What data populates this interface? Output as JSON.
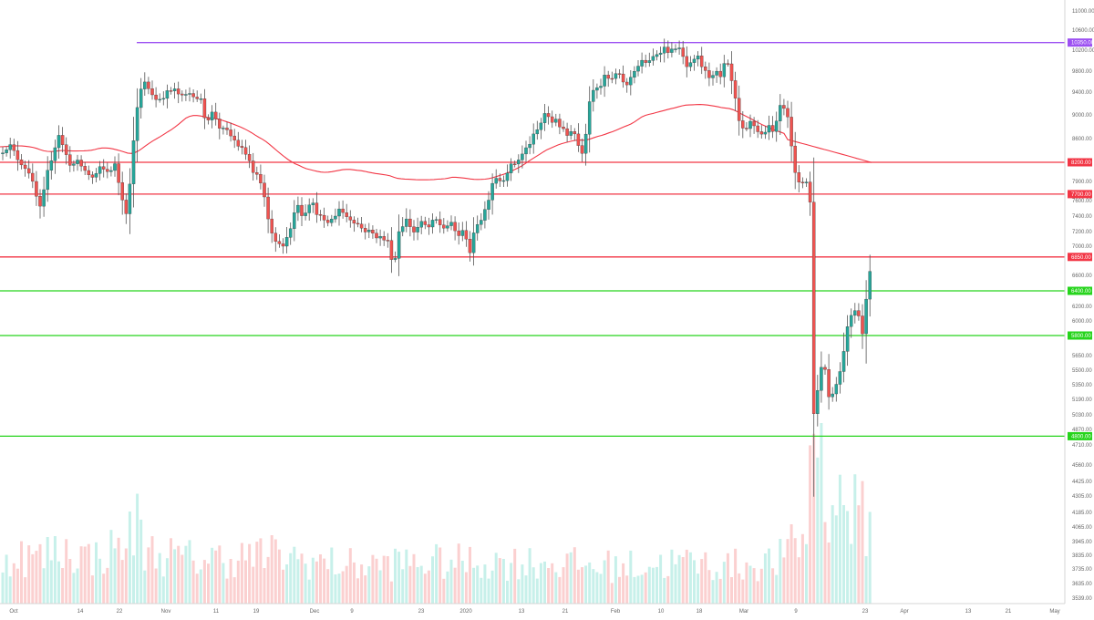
{
  "chart_data": {
    "type": "candlestick",
    "price_axis": {
      "scale": "log",
      "ticks": [
        "11000.00",
        "10600.00",
        "10200.00",
        "9800.00",
        "9400.00",
        "9000.00",
        "8600.00",
        "8200.00",
        "7900.00",
        "7600.00",
        "7400.00",
        "7200.00",
        "7000.00",
        "6600.00",
        "6400.00",
        "6200.00",
        "6000.00",
        "5800.00",
        "5650.00",
        "5500.00",
        "5350.00",
        "5190.00",
        "5030.00",
        "4870.00",
        "4710.00",
        "4560.00",
        "4425.00",
        "4305.00",
        "4185.00",
        "4065.00",
        "3945.00",
        "3835.00",
        "3735.00",
        "3635.00",
        "3539.00"
      ]
    },
    "time_axis": {
      "labels": [
        "Oct",
        "14",
        "22",
        "Nov",
        "11",
        "19",
        "Dec",
        "9",
        "23",
        "2020",
        "13",
        "21",
        "Feb",
        "10",
        "18",
        "Mar",
        "9",
        "23",
        "Apr",
        "13",
        "21",
        "May"
      ]
    },
    "horizontal_levels": [
      {
        "label": "10350.00",
        "value": 10350,
        "color": "#9c50f2"
      },
      {
        "label": "8200.00",
        "value": 8200,
        "color": "#f23645"
      },
      {
        "label": "7700.00",
        "value": 7700,
        "color": "#f23645"
      },
      {
        "label": "6850.00",
        "value": 6850,
        "color": "#f23645"
      },
      {
        "label": "6400.00",
        "value": 6400,
        "color": "#26d41c"
      },
      {
        "label": "5800.00",
        "value": 5800,
        "color": "#26d41c"
      },
      {
        "label": "4800.00",
        "value": 4800,
        "color": "#26d41c"
      }
    ],
    "moving_average_color": "#f23645",
    "colors": {
      "up": "#26a69a",
      "down": "#ef5350",
      "up_volume": "#c7f0ea",
      "down_volume": "#fbd0d0"
    },
    "anchors": [
      [
        0,
        8350
      ],
      [
        10,
        8500
      ],
      [
        20,
        8250
      ],
      [
        32,
        8050
      ],
      [
        40,
        7650
      ],
      [
        45,
        7450
      ],
      [
        50,
        7900
      ],
      [
        55,
        8200
      ],
      [
        60,
        8450
      ],
      [
        65,
        8700
      ],
      [
        70,
        8400
      ],
      [
        78,
        8150
      ],
      [
        86,
        8200
      ],
      [
        94,
        8050
      ],
      [
        102,
        7950
      ],
      [
        110,
        8100
      ],
      [
        118,
        8050
      ],
      [
        126,
        8150
      ],
      [
        134,
        7650
      ],
      [
        140,
        7400
      ],
      [
        147,
        8700
      ],
      [
        152,
        9250
      ],
      [
        157,
        9600
      ],
      [
        164,
        9450
      ],
      [
        172,
        9250
      ],
      [
        180,
        9350
      ],
      [
        190,
        9450
      ],
      [
        200,
        9300
      ],
      [
        210,
        9400
      ],
      [
        220,
        9250
      ],
      [
        226,
        8900
      ],
      [
        234,
        9050
      ],
      [
        242,
        8750
      ],
      [
        250,
        8700
      ],
      [
        258,
        8550
      ],
      [
        266,
        8400
      ],
      [
        272,
        8300
      ],
      [
        278,
        8000
      ],
      [
        284,
        7950
      ],
      [
        290,
        7650
      ],
      [
        296,
        7200
      ],
      [
        302,
        7050
      ],
      [
        308,
        7000
      ],
      [
        314,
        7100
      ],
      [
        320,
        7300
      ],
      [
        326,
        7600
      ],
      [
        332,
        7400
      ],
      [
        340,
        7600
      ],
      [
        348,
        7450
      ],
      [
        356,
        7300
      ],
      [
        364,
        7350
      ],
      [
        372,
        7500
      ],
      [
        380,
        7400
      ],
      [
        388,
        7350
      ],
      [
        396,
        7250
      ],
      [
        404,
        7200
      ],
      [
        412,
        7150
      ],
      [
        420,
        7100
      ],
      [
        426,
        7050
      ],
      [
        432,
        6700
      ],
      [
        438,
        7250
      ],
      [
        446,
        7350
      ],
      [
        454,
        7200
      ],
      [
        462,
        7300
      ],
      [
        470,
        7250
      ],
      [
        478,
        7350
      ],
      [
        486,
        7250
      ],
      [
        494,
        7300
      ],
      [
        502,
        7150
      ],
      [
        510,
        7200
      ],
      [
        516,
        6900
      ],
      [
        522,
        7300
      ],
      [
        530,
        7400
      ],
      [
        536,
        7650
      ],
      [
        542,
        8000
      ],
      [
        550,
        7900
      ],
      [
        558,
        8100
      ],
      [
        566,
        8200
      ],
      [
        574,
        8350
      ],
      [
        580,
        8500
      ],
      [
        586,
        8650
      ],
      [
        592,
        8800
      ],
      [
        598,
        9050
      ],
      [
        604,
        8850
      ],
      [
        610,
        8950
      ],
      [
        616,
        8750
      ],
      [
        622,
        8650
      ],
      [
        628,
        8800
      ],
      [
        634,
        8500
      ],
      [
        640,
        8350
      ],
      [
        646,
        9200
      ],
      [
        652,
        9550
      ],
      [
        658,
        9500
      ],
      [
        664,
        9700
      ],
      [
        670,
        9600
      ],
      [
        676,
        9750
      ],
      [
        682,
        9650
      ],
      [
        688,
        9500
      ],
      [
        694,
        9800
      ],
      [
        700,
        9900
      ],
      [
        706,
        10000
      ],
      [
        712,
        9950
      ],
      [
        718,
        10100
      ],
      [
        724,
        10200
      ],
      [
        730,
        10250
      ],
      [
        736,
        10150
      ],
      [
        742,
        10300
      ],
      [
        748,
        10100
      ],
      [
        754,
        9850
      ],
      [
        760,
        9950
      ],
      [
        766,
        10050
      ],
      [
        772,
        9800
      ],
      [
        778,
        9700
      ],
      [
        784,
        9800
      ],
      [
        790,
        9650
      ],
      [
        796,
        10000
      ],
      [
        800,
        9800
      ],
      [
        806,
        9300
      ],
      [
        812,
        8750
      ],
      [
        818,
        8700
      ],
      [
        824,
        8900
      ],
      [
        830,
        8750
      ],
      [
        836,
        8650
      ],
      [
        842,
        8800
      ],
      [
        848,
        8700
      ],
      [
        854,
        9100
      ],
      [
        860,
        9150
      ],
      [
        866,
        8950
      ],
      [
        870,
        8100
      ],
      [
        876,
        7850
      ],
      [
        882,
        7900
      ],
      [
        888,
        7950
      ],
      [
        893,
        4850
      ],
      [
        898,
        5450
      ],
      [
        904,
        5600
      ],
      [
        910,
        5150
      ],
      [
        916,
        5350
      ],
      [
        922,
        5500
      ],
      [
        928,
        5850
      ],
      [
        934,
        6100
      ],
      [
        940,
        6200
      ],
      [
        946,
        5850
      ],
      [
        952,
        6500
      ],
      [
        956,
        6750
      ]
    ],
    "volume_anchors": [
      [
        0,
        60
      ],
      [
        20,
        65
      ],
      [
        40,
        60
      ],
      [
        60,
        70
      ],
      [
        80,
        70
      ],
      [
        100,
        60
      ],
      [
        130,
        75
      ],
      [
        140,
        85
      ],
      [
        150,
        110
      ],
      [
        160,
        70
      ],
      [
        200,
        60
      ],
      [
        250,
        60
      ],
      [
        300,
        65
      ],
      [
        350,
        55
      ],
      [
        400,
        50
      ],
      [
        450,
        55
      ],
      [
        500,
        55
      ],
      [
        550,
        55
      ],
      [
        600,
        55
      ],
      [
        650,
        50
      ],
      [
        700,
        50
      ],
      [
        750,
        55
      ],
      [
        800,
        50
      ],
      [
        850,
        55
      ],
      [
        880,
        85
      ],
      [
        890,
        110
      ],
      [
        900,
        140
      ],
      [
        910,
        140
      ],
      [
        930,
        130
      ],
      [
        950,
        110
      ],
      [
        958,
        90
      ]
    ]
  }
}
